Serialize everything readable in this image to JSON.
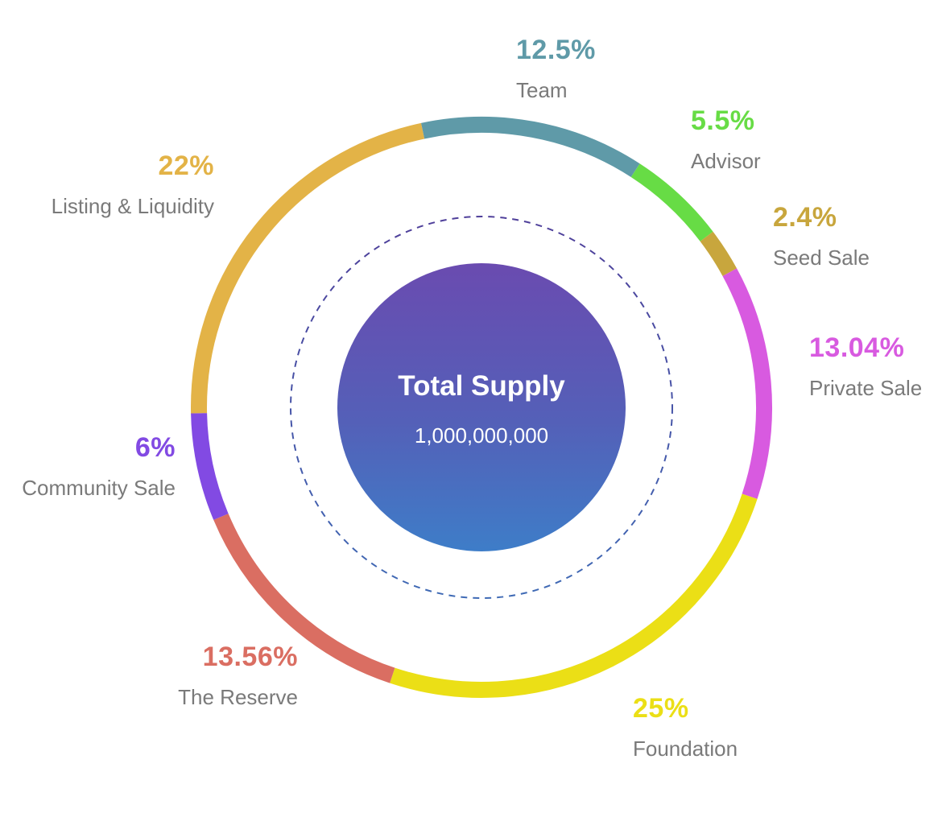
{
  "chart_data": {
    "type": "pie",
    "center": {
      "title": "Total Supply",
      "value": "1,000,000,000"
    },
    "slices": [
      {
        "label": "Team",
        "value": 12.5,
        "display": "12.5%",
        "color": "#5f9aa8"
      },
      {
        "label": "Advisor",
        "value": 5.5,
        "display": "5.5%",
        "color": "#67dc45"
      },
      {
        "label": "Seed Sale",
        "value": 2.4,
        "display": "2.4%",
        "color": "#c8a63d"
      },
      {
        "label": "Private Sale",
        "value": 13.04,
        "display": "13.04%",
        "color": "#d85ae0"
      },
      {
        "label": "Foundation",
        "value": 25,
        "display": "25%",
        "color": "#ebdf16"
      },
      {
        "label": "The Reserve",
        "value": 13.56,
        "display": "13.56%",
        "color": "#da6e62"
      },
      {
        "label": "Community Sale",
        "value": 6,
        "display": "6%",
        "color": "#824ae3"
      },
      {
        "label": "Listing & Liquidity",
        "value": 22,
        "display": "22%",
        "color": "#e3b347"
      }
    ]
  }
}
